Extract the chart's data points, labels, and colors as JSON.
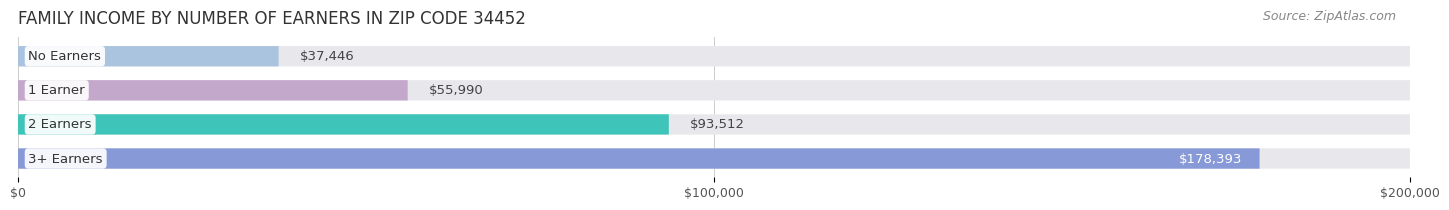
{
  "title": "FAMILY INCOME BY NUMBER OF EARNERS IN ZIP CODE 34452",
  "source": "Source: ZipAtlas.com",
  "categories": [
    "No Earners",
    "1 Earner",
    "2 Earners",
    "3+ Earners"
  ],
  "values": [
    37446,
    55990,
    93512,
    178393
  ],
  "bar_colors": [
    "#aac4e0",
    "#c4a8cc",
    "#3ec4b8",
    "#8899d8"
  ],
  "bar_label_colors": [
    "#555555",
    "#555555",
    "#555555",
    "#ffffff"
  ],
  "xlim": [
    0,
    200000
  ],
  "xticks": [
    0,
    100000,
    200000
  ],
  "xtick_labels": [
    "$0",
    "$100,000",
    "$200,000"
  ],
  "background_color": "#ffffff",
  "bar_bg_color": "#e8e8ec",
  "title_fontsize": 12,
  "source_fontsize": 9,
  "label_fontsize": 9.5,
  "value_fontsize": 9.5,
  "tick_fontsize": 9
}
